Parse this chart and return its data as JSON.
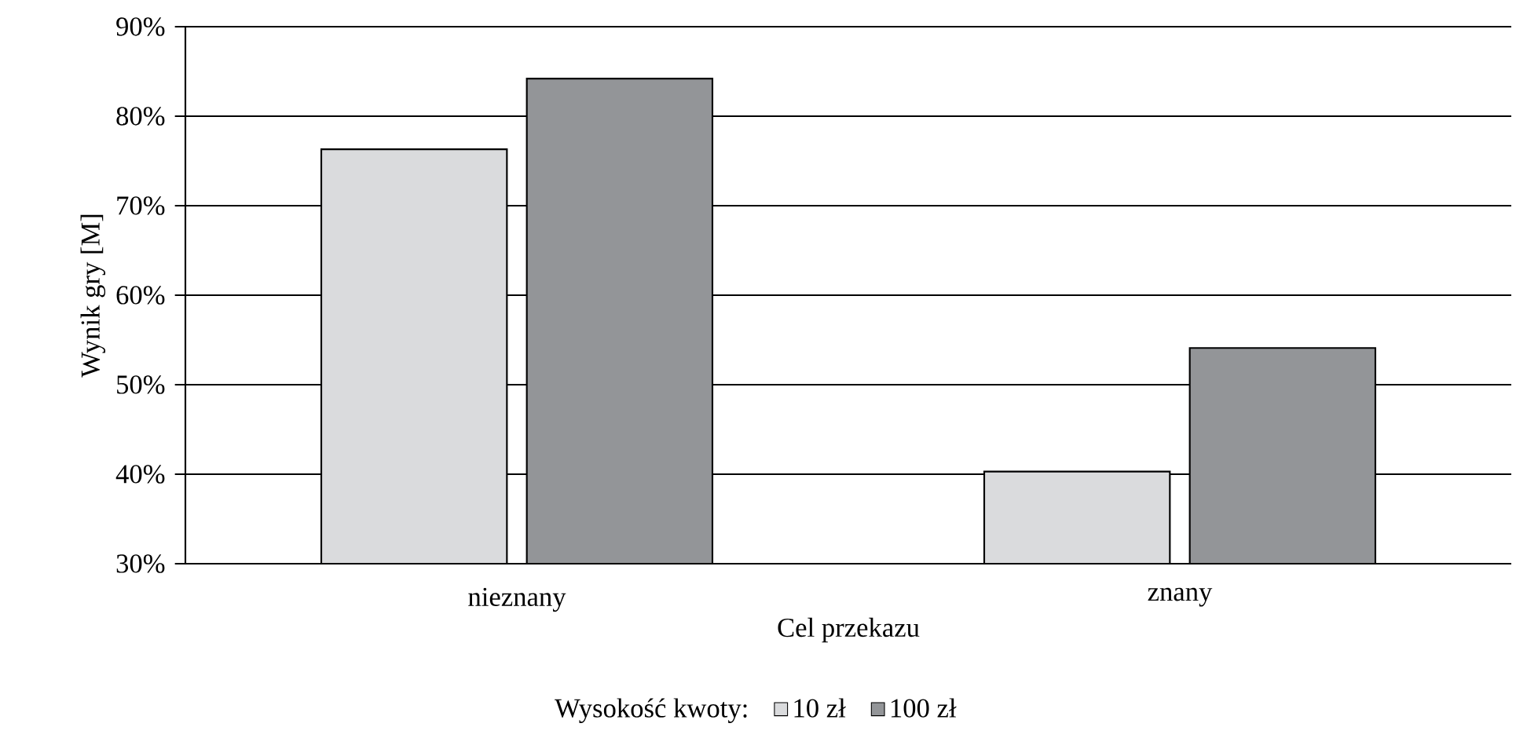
{
  "chart_data": {
    "type": "bar",
    "xlabel": "Cel przekazu",
    "ylabel": "Wynik gry [M]",
    "legend_title": "Wysokość kwoty:",
    "legend": "bottom",
    "grid": "y",
    "categories": [
      "nieznany",
      "znany"
    ],
    "series": [
      {
        "name": "10 zł",
        "color": "#dadbdd",
        "values": [
          76.3,
          40.3
        ]
      },
      {
        "name": "100 zł",
        "color": "#939598",
        "values": [
          84.2,
          54.1
        ]
      }
    ],
    "ylim": [
      30,
      90
    ],
    "yticks": [
      {
        "value": 30,
        "label": "30%"
      },
      {
        "value": 40,
        "label": "40%"
      },
      {
        "value": 50,
        "label": "50%"
      },
      {
        "value": 60,
        "label": "60%"
      },
      {
        "value": 70,
        "label": "70%"
      },
      {
        "value": 80,
        "label": "80%"
      },
      {
        "value": 90,
        "label": "90%"
      }
    ]
  }
}
